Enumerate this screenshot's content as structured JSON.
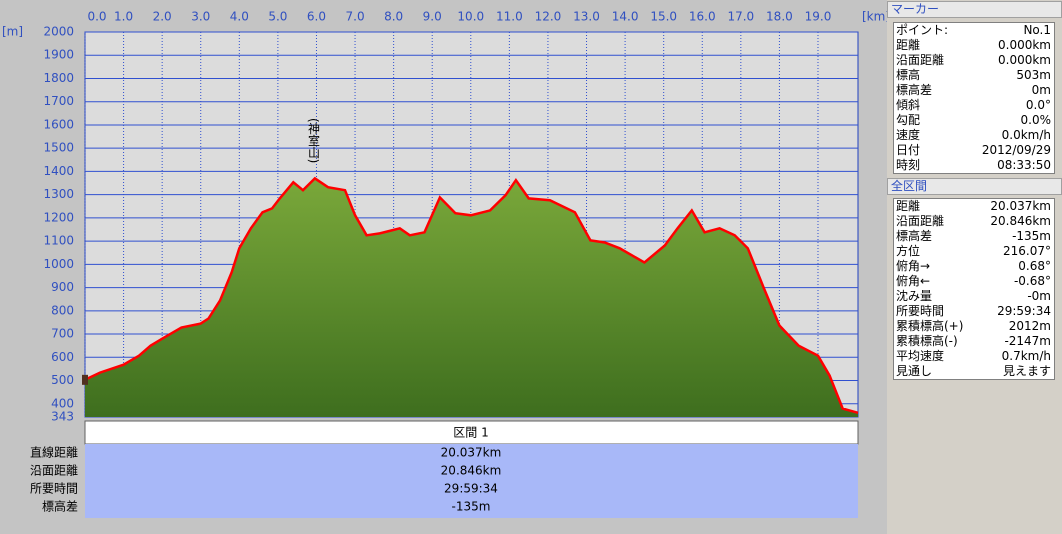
{
  "chart_data": {
    "type": "area-line",
    "x_label": "[km]",
    "y_label": "[m]",
    "annotation": "(神室山)",
    "xlim": [
      0,
      20.037
    ],
    "ylim": [
      343,
      2000
    ],
    "xticks": [
      {
        "value": 0,
        "label": "0.0"
      },
      {
        "value": 1,
        "label": "1.0"
      },
      {
        "value": 2,
        "label": "2.0"
      },
      {
        "value": 3,
        "label": "3.0"
      },
      {
        "value": 4,
        "label": "4.0"
      },
      {
        "value": 5,
        "label": "5.0"
      },
      {
        "value": 6,
        "label": "6.0"
      },
      {
        "value": 7,
        "label": "7.0"
      },
      {
        "value": 8,
        "label": "8.0"
      },
      {
        "value": 9,
        "label": "9.0"
      },
      {
        "value": 10,
        "label": "10.0"
      },
      {
        "value": 11,
        "label": "11.0"
      },
      {
        "value": 12,
        "label": "12.0"
      },
      {
        "value": 13,
        "label": "13.0"
      },
      {
        "value": 14,
        "label": "14.0"
      },
      {
        "value": 15,
        "label": "15.0"
      },
      {
        "value": 16,
        "label": "16.0"
      },
      {
        "value": 17,
        "label": "17.0"
      },
      {
        "value": 18,
        "label": "18.0"
      },
      {
        "value": 19,
        "label": "19.0"
      }
    ],
    "yticks": [
      343,
      400,
      500,
      600,
      700,
      800,
      900,
      1000,
      1100,
      1200,
      1300,
      1400,
      1500,
      1600,
      1700,
      1800,
      1900,
      2000
    ],
    "grid": true,
    "line_color": "#ff0000",
    "fill_color": "#7aa83a",
    "x": [
      0,
      0.39,
      1.0,
      1.4,
      1.7,
      2.0,
      2.5,
      3.0,
      3.2,
      3.5,
      3.8,
      4.0,
      4.3,
      4.6,
      4.85,
      5.05,
      5.4,
      5.65,
      5.96,
      6.3,
      6.74,
      7.0,
      7.3,
      7.64,
      7.95,
      8.16,
      8.42,
      8.8,
      9.2,
      9.6,
      10.0,
      10.5,
      10.9,
      11.17,
      11.5,
      12.05,
      12.7,
      13.1,
      13.47,
      13.86,
      14.5,
      15.03,
      15.36,
      15.73,
      16.06,
      16.45,
      16.84,
      17.18,
      17.6,
      18.0,
      18.5,
      19.0,
      19.3,
      19.64,
      20.037
    ],
    "values": [
      503,
      534,
      568,
      607,
      650,
      680,
      728,
      745,
      767,
      844,
      965,
      1069,
      1155,
      1224,
      1241,
      1284,
      1353,
      1319,
      1370,
      1332,
      1319,
      1211,
      1125,
      1133,
      1146,
      1155,
      1125,
      1138,
      1288,
      1220,
      1211,
      1232,
      1297,
      1362,
      1284,
      1276,
      1224,
      1103,
      1094,
      1069,
      1008,
      1081,
      1155,
      1232,
      1138,
      1155,
      1125,
      1069,
      896,
      737,
      650,
      607,
      521,
      379,
      361
    ]
  },
  "section_summary": {
    "header": "区間 1",
    "rows": [
      [
        "直線距離",
        "20.037km"
      ],
      [
        "沿面距離",
        "20.846km"
      ],
      [
        "所要時間",
        "29:59:34"
      ],
      [
        "標高差",
        "-135m"
      ]
    ]
  },
  "marker_panel": {
    "title": "マーカー",
    "rows": [
      [
        "ポイント:",
        "No.1"
      ],
      [
        "距離",
        "0.000km"
      ],
      [
        "沿面距離",
        "0.000km"
      ],
      [
        "標高",
        "503m"
      ],
      [
        "標高差",
        "0m"
      ],
      [
        "傾斜",
        "0.0°"
      ],
      [
        "勾配",
        "0.0%"
      ],
      [
        "速度",
        "0.0km/h"
      ],
      [
        "日付",
        "2012/09/29"
      ],
      [
        "時刻",
        "08:33:50"
      ]
    ]
  },
  "section_panel": {
    "title": "全区間",
    "rows": [
      [
        "距離",
        "20.037km"
      ],
      [
        "沿面距離",
        "20.846km"
      ],
      [
        "標高差",
        "-135m"
      ],
      [
        "方位",
        "216.07°"
      ],
      [
        "俯角→",
        "0.68°"
      ],
      [
        "俯角←",
        "-0.68°"
      ],
      [
        "沈み量",
        "-0m"
      ],
      [
        "所要時間",
        "29:59:34"
      ],
      [
        "累積標高(+)",
        "2012m"
      ],
      [
        "累積標高(-)",
        "-2147m"
      ],
      [
        "平均速度",
        "0.7km/h"
      ],
      [
        "見通し",
        "見えます"
      ]
    ]
  }
}
